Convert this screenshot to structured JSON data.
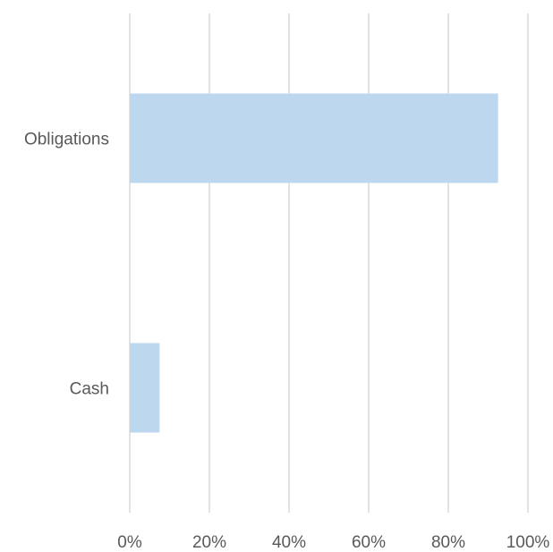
{
  "chart_data": {
    "type": "bar",
    "orientation": "horizontal",
    "categories": [
      "Obligations",
      "Cash"
    ],
    "values": [
      92.5,
      7.5
    ],
    "xlim": [
      0,
      100
    ],
    "x_ticks": [
      "0%",
      "20%",
      "40%",
      "60%",
      "80%",
      "100%"
    ],
    "title": "",
    "xlabel": "",
    "ylabel": "",
    "grid": "vertical",
    "legend": "none",
    "colors": {
      "bar": "#bdd7ee",
      "grid": "#d9d9d9",
      "text": "#595959"
    }
  }
}
